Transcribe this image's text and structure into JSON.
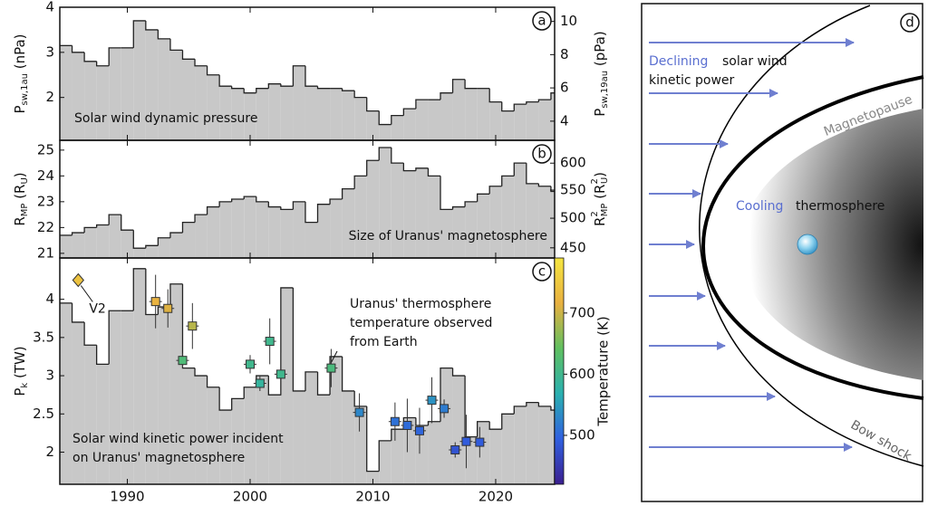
{
  "chart_data": [
    {
      "type": "step",
      "panel_label": "a",
      "annotation": "Solar wind dynamic pressure",
      "ylabel": [
        {
          "t": "P"
        },
        {
          "t": "sw,1au",
          "pos": "sub"
        },
        {
          "t": " (nPa)"
        }
      ],
      "y2label": [
        {
          "t": "P"
        },
        {
          "t": "sw,19au",
          "pos": "sub"
        },
        {
          "t": " (pPa)"
        }
      ],
      "color": "#c8c8c8",
      "x": [
        1984.5,
        1985.5,
        1986.5,
        1987.5,
        1988.5,
        1989.5,
        1990.5,
        1991.5,
        1992.5,
        1993.5,
        1994.5,
        1995.5,
        1996.5,
        1997.5,
        1998.5,
        1999.5,
        2000.5,
        2001.5,
        2002.5,
        2003.5,
        2004.5,
        2005.5,
        2006.5,
        2007.5,
        2008.5,
        2009.5,
        2010.5,
        2011.5,
        2012.5,
        2013.5,
        2014.5,
        2015.5,
        2016.5,
        2017.5,
        2018.5,
        2019.5,
        2020.5,
        2021.5,
        2022.5,
        2023.5,
        2024.5
      ],
      "values": [
        3.15,
        3.0,
        2.8,
        2.7,
        3.1,
        3.1,
        3.7,
        3.5,
        3.3,
        3.05,
        2.85,
        2.7,
        2.5,
        2.25,
        2.2,
        2.1,
        2.2,
        2.3,
        2.25,
        2.7,
        2.25,
        2.2,
        2.2,
        2.15,
        2.0,
        1.7,
        1.4,
        1.6,
        1.75,
        1.95,
        1.95,
        2.1,
        2.4,
        2.2,
        2.2,
        1.9,
        1.7,
        1.85,
        1.9,
        1.95,
        2.1
      ],
      "xlim": [
        1984.5,
        2024.8
      ],
      "xticks": [
        1990,
        2000,
        2010,
        2020
      ],
      "ylim": [
        1.05,
        4
      ],
      "yticks": [
        2,
        3,
        4
      ],
      "y2lim": [
        2.85,
        10.85
      ],
      "y2ticks": [
        4,
        6,
        8,
        10
      ]
    },
    {
      "type": "step",
      "panel_label": "b",
      "annotation": "Size of Uranus' magnetosphere",
      "ylabel": [
        {
          "t": "R"
        },
        {
          "t": "MP",
          "pos": "sub"
        },
        {
          "t": " (R"
        },
        {
          "t": "U",
          "pos": "sub"
        },
        {
          "t": ")"
        }
      ],
      "y2label": [
        {
          "t": "R"
        },
        {
          "t": "2",
          "pos": "sup"
        },
        {
          "t": "MP",
          "pos": "sub"
        },
        {
          "t": " (R"
        },
        {
          "t": "2",
          "pos": "sup"
        },
        {
          "t": "U",
          "pos": "sub"
        },
        {
          "t": ")"
        }
      ],
      "color": "#c8c8c8",
      "x": [
        1984.5,
        1985.5,
        1986.5,
        1987.5,
        1988.5,
        1989.5,
        1990.5,
        1991.5,
        1992.5,
        1993.5,
        1994.5,
        1995.5,
        1996.5,
        1997.5,
        1998.5,
        1999.5,
        2000.5,
        2001.5,
        2002.5,
        2003.5,
        2004.5,
        2005.5,
        2006.5,
        2007.5,
        2008.5,
        2009.5,
        2010.5,
        2011.5,
        2012.5,
        2013.5,
        2014.5,
        2015.5,
        2016.5,
        2017.5,
        2018.5,
        2019.5,
        2020.5,
        2021.5,
        2022.5,
        2023.5,
        2024.5
      ],
      "values": [
        21.7,
        21.8,
        22.0,
        22.1,
        22.5,
        21.9,
        21.2,
        21.3,
        21.6,
        21.8,
        22.2,
        22.5,
        22.8,
        23.0,
        23.1,
        23.2,
        23.0,
        22.8,
        22.7,
        23.0,
        22.2,
        22.9,
        23.1,
        23.5,
        24.0,
        24.6,
        25.1,
        24.5,
        24.2,
        24.3,
        24.0,
        22.7,
        22.8,
        23.0,
        23.3,
        23.6,
        24.0,
        24.5,
        23.7,
        23.6,
        23.4
      ],
      "xlim": [
        1984.5,
        2024.8
      ],
      "xticks": [
        1990,
        2000,
        2010,
        2020
      ],
      "ylim": [
        20.82,
        25.38
      ],
      "yticks": [
        21,
        22,
        23,
        24,
        25
      ],
      "y2scale": "sqrt",
      "y2ticks": [
        450,
        500,
        550,
        600
      ]
    },
    {
      "type": "step",
      "panel_label": "c",
      "annotation": [
        "Solar wind kinetic power incident",
        "on Uranus' magnetosphere"
      ],
      "ylabel": [
        {
          "t": "P"
        },
        {
          "t": "k",
          "pos": "sub"
        },
        {
          "t": " (TW)"
        }
      ],
      "color": "#c8c8c8",
      "x": [
        1984.5,
        1985.5,
        1986.5,
        1987.5,
        1988.5,
        1989.5,
        1990.5,
        1991.5,
        1992.5,
        1993.5,
        1994.5,
        1995.5,
        1996.5,
        1997.5,
        1998.5,
        1999.5,
        2000.5,
        2001.5,
        2002.5,
        2003.5,
        2004.5,
        2005.5,
        2006.5,
        2007.5,
        2008.5,
        2009.5,
        2010.5,
        2011.5,
        2012.5,
        2013.5,
        2014.5,
        2015.5,
        2016.5,
        2017.5,
        2018.5,
        2019.5,
        2020.5,
        2021.5,
        2022.5,
        2023.5,
        2024.5
      ],
      "values": [
        3.95,
        3.7,
        3.4,
        3.15,
        3.85,
        3.85,
        4.4,
        3.8,
        3.9,
        4.2,
        3.1,
        3.0,
        2.85,
        2.55,
        2.7,
        2.85,
        3.0,
        2.75,
        4.15,
        2.8,
        3.05,
        2.75,
        3.25,
        2.8,
        2.6,
        1.75,
        2.15,
        2.3,
        2.45,
        2.35,
        2.4,
        3.1,
        3.0,
        2.2,
        2.4,
        2.3,
        2.5,
        2.6,
        2.65,
        2.6,
        2.55
      ],
      "xlim": [
        1984.5,
        2024.8
      ],
      "xticks": [
        1990,
        2000,
        2010,
        2020
      ],
      "ylim": [
        1.58,
        4.54
      ],
      "yticks": [
        2,
        2.5,
        3,
        3.5,
        4
      ],
      "observations": {
        "note": [
          "Uranus' thermosphere",
          "temperature observed",
          "from Earth"
        ],
        "x": [
          1992.3,
          1993.3,
          1995.3,
          1994.5,
          2000.0,
          2000.8,
          2001.6,
          2002.5,
          2006.6,
          2008.9,
          2011.8,
          2012.8,
          2013.8,
          2014.8,
          2015.8,
          2016.7,
          2017.6,
          2018.7
        ],
        "values": [
          3.97,
          3.88,
          3.65,
          3.2,
          3.15,
          2.9,
          3.45,
          3.02,
          3.1,
          2.52,
          2.4,
          2.35,
          2.28,
          2.68,
          2.57,
          2.03,
          2.14,
          2.13
        ],
        "errors": [
          0.35,
          0.25,
          0.3,
          0.1,
          0.12,
          0.1,
          0.3,
          0.28,
          0.25,
          0.25,
          0.25,
          0.35,
          0.3,
          0.3,
          0.12,
          0.1,
          0.35,
          0.2
        ],
        "temperature": [
          720,
          710,
          690,
          620,
          600,
          585,
          600,
          600,
          615,
          530,
          510,
          505,
          500,
          540,
          520,
          480,
          490,
          490
        ]
      },
      "spacecraft": {
        "label": "V2",
        "x": 1986,
        "value": 4.25,
        "temperature": 740
      },
      "colorbar": {
        "label": "Temperature (K)",
        "zlim": [
          420,
          790
        ],
        "ticks": [
          500,
          600,
          700
        ],
        "colormap": [
          "#3b1f8f",
          "#3060e0",
          "#2ab0b0",
          "#60c060",
          "#e8b040",
          "#f5e640"
        ]
      }
    }
  ],
  "diagram": {
    "panel_label": "d",
    "declining": "Declining",
    "solar_wind": "solar wind",
    "kinetic_power": "kinetic power",
    "magnetopause": "Magnetopause",
    "cooling": "Cooling",
    "thermosphere": "thermosphere",
    "bow_shock": "Bow shock"
  }
}
